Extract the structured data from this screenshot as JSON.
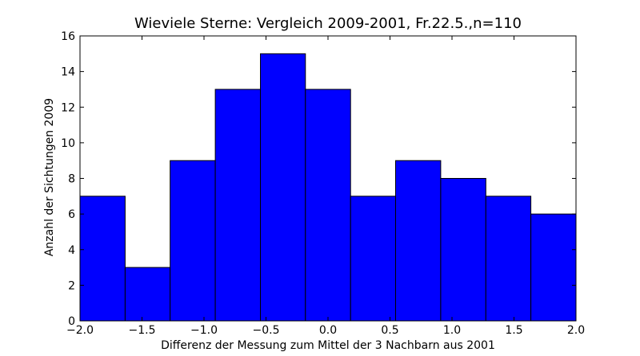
{
  "chart_data": {
    "type": "bar",
    "title": "Wieviele Sterne: Vergleich 2009-2001, Fr.22.5.,n=110",
    "xlabel": "Differenz der Messung zum Mittel der 3 Nachbarn aus 2001",
    "ylabel": "Anzahl der Sichtungen 2009",
    "xlim": [
      -2.0,
      2.0
    ],
    "ylim": [
      0,
      16
    ],
    "bin_edges": [
      -2.0,
      -1.636,
      -1.273,
      -0.909,
      -0.545,
      -0.182,
      0.182,
      0.545,
      0.909,
      1.273,
      1.636,
      2.0
    ],
    "values": [
      7,
      3,
      9,
      13,
      15,
      13,
      7,
      9,
      8,
      7,
      6
    ],
    "xticks": [
      "−2.0",
      "−1.5",
      "−1.0",
      "−0.5",
      "0.0",
      "0.5",
      "1.0",
      "1.5",
      "2.0"
    ],
    "xtick_values": [
      -2.0,
      -1.5,
      -1.0,
      -0.5,
      0.0,
      0.5,
      1.0,
      1.5,
      2.0
    ],
    "yticks": [
      "0",
      "2",
      "4",
      "6",
      "8",
      "10",
      "12",
      "14",
      "16"
    ],
    "ytick_values": [
      0,
      2,
      4,
      6,
      8,
      10,
      12,
      14,
      16
    ],
    "bar_color": "#0000ff",
    "grid": false
  }
}
